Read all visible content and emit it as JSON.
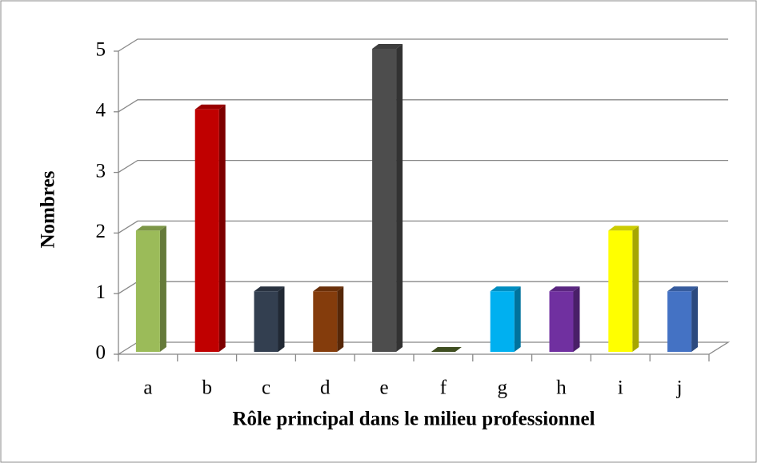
{
  "chart_data": {
    "type": "bar3d",
    "x_label": "Rôle principal dans le milieu professionnel",
    "y_label": "Nombres",
    "categories": [
      "a",
      "b",
      "c",
      "d",
      "e",
      "f",
      "g",
      "h",
      "i",
      "j"
    ],
    "values": [
      2,
      4,
      1,
      1,
      5,
      0,
      1,
      1,
      2,
      1
    ],
    "colors": [
      "#9bbb59",
      "#c00000",
      "#333f50",
      "#843c0c",
      "#4d4d4d",
      "#4f6228",
      "#00b0f0",
      "#7030a0",
      "#ffff00",
      "#4472c4"
    ],
    "ylim": [
      0,
      5
    ],
    "yticks": [
      0,
      1,
      2,
      3,
      4,
      5
    ],
    "grid": true
  }
}
